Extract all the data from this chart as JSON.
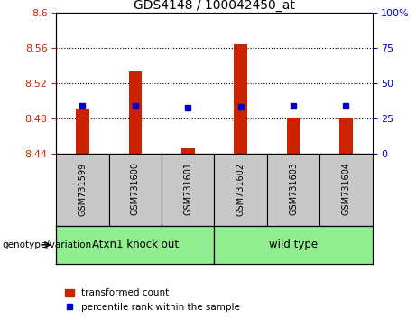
{
  "title": "GDS4148 / 100042450_at",
  "samples": [
    "GSM731599",
    "GSM731600",
    "GSM731601",
    "GSM731602",
    "GSM731603",
    "GSM731604"
  ],
  "red_values": [
    8.49,
    8.533,
    8.446,
    8.564,
    8.481,
    8.481
  ],
  "blue_values": [
    8.494,
    8.494,
    8.492,
    8.493,
    8.494,
    8.494
  ],
  "ylim_left": [
    8.44,
    8.6
  ],
  "yticks_left": [
    8.44,
    8.48,
    8.52,
    8.56,
    8.6
  ],
  "ytick_labels_left": [
    "8.44",
    "8.48",
    "8.52",
    "8.56",
    "8.6"
  ],
  "yticks_right": [
    0,
    25,
    50,
    75,
    100
  ],
  "ytick_labels_right": [
    "0",
    "25",
    "50",
    "75",
    "100%"
  ],
  "bar_color": "#cc2200",
  "dot_color": "#0000cc",
  "base_value": 8.44,
  "label_color_left": "#cc2200",
  "label_color_right": "#0000cc",
  "legend_red_label": "transformed count",
  "legend_blue_label": "percentile rank within the sample",
  "genotype_label": "genotype/variation",
  "tick_area_color": "#c8c8c8",
  "group_area_color": "#90ee90",
  "group_defs": [
    {
      "label": "Atxn1 knock out",
      "start": 0,
      "end": 2
    },
    {
      "label": "wild type",
      "start": 3,
      "end": 5
    }
  ]
}
